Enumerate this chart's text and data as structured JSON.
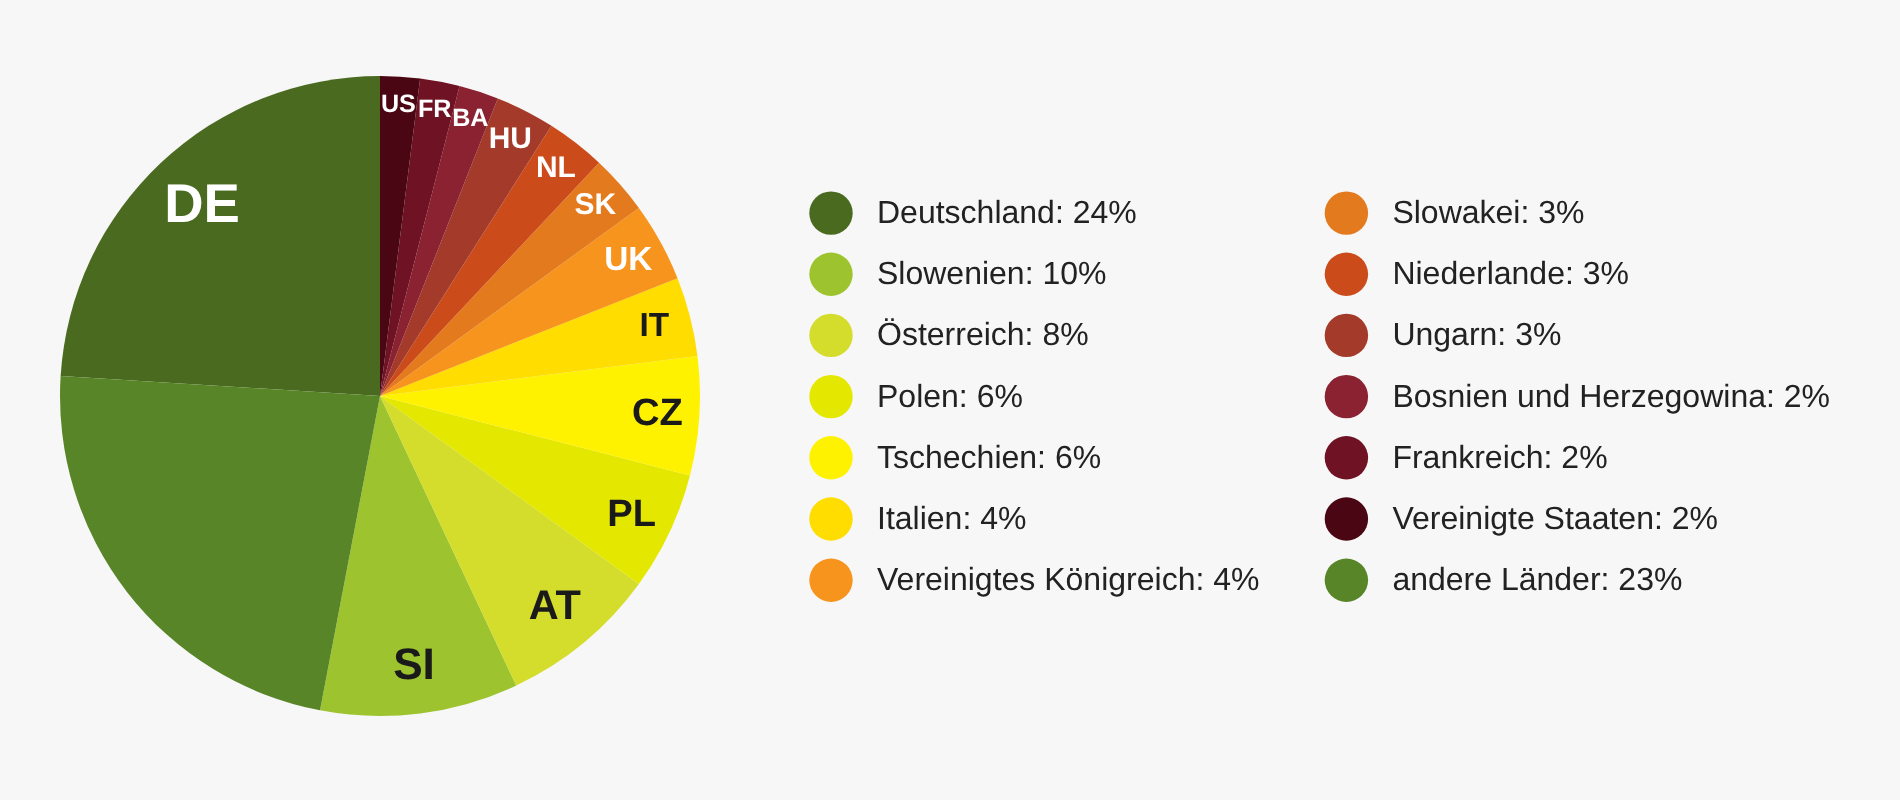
{
  "chart_data": {
    "type": "pie",
    "categories": [
      "Deutschland: 24%",
      "Slowenien: 10%",
      "Österreich: 8%",
      "Polen: 6%",
      "Tschechien: 6%",
      "Italien: 4%",
      "Vereinigtes Königreich: 4%",
      "Slowakei: 3%",
      "Niederlande: 3%",
      "Ungarn: 3%",
      "Bosnien und Herzegowina: 2%",
      "Frankreich: 2%",
      "Vereinigte Staaten: 2%",
      "andere Länder: 23%"
    ],
    "values": [
      24,
      10,
      8,
      6,
      6,
      4,
      4,
      3,
      3,
      3,
      2,
      2,
      2,
      23
    ],
    "colors": [
      "#4a6b1f",
      "#9dc42e",
      "#d4dc2c",
      "#e4e800",
      "#fff200",
      "#ffdd00",
      "#f7941d",
      "#e47a1e",
      "#cc4b1a",
      "#a33a2a",
      "#8b2232",
      "#6e1224",
      "#4a0612",
      "#578527"
    ],
    "value_labels": [
      "DE",
      "SI",
      "AT",
      "PL",
      "CZ",
      "IT",
      "UK",
      "SK",
      "NL",
      "HU",
      "BA",
      "FR",
      "US",
      null
    ],
    "legend": "right"
  }
}
